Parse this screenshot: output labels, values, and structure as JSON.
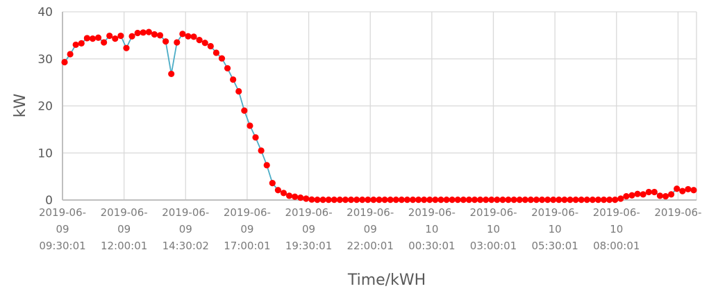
{
  "chart_data": {
    "type": "line",
    "title": "",
    "xlabel": "Time/kWH",
    "ylabel": "kW",
    "ylim": [
      0,
      40
    ],
    "yticks": [
      "0",
      "10",
      "20",
      "30",
      "40"
    ],
    "grid": true,
    "legend": "none",
    "x_tick_labels": [
      [
        "2019-06-",
        "09",
        "09:30:01"
      ],
      [
        "2019-06-",
        "09",
        "12:00:01"
      ],
      [
        "2019-06-",
        "09",
        "14:30:02"
      ],
      [
        "2019-06-",
        "09",
        "17:00:01"
      ],
      [
        "2019-06-",
        "09",
        "19:30:01"
      ],
      [
        "2019-06-",
        "09",
        "22:00:01"
      ],
      [
        "2019-06-",
        "10",
        "00:30:01"
      ],
      [
        "2019-06-",
        "10",
        "03:00:01"
      ],
      [
        "2019-06-",
        "10",
        "05:30:01"
      ],
      [
        "2019-06-",
        "10",
        "08:00:01"
      ],
      [
        "2019-06-",
        "",
        ""
      ]
    ],
    "colors": {
      "line": "#4bacc6",
      "marker": "#ff0000",
      "grid": "#d9d9d9",
      "axis": "#bfbfbf"
    },
    "series": [
      {
        "values": [
          29.3,
          31.0,
          33.0,
          33.3,
          34.4,
          34.3,
          34.5,
          33.5,
          34.9,
          34.3,
          34.9,
          32.3,
          34.8,
          35.5,
          35.6,
          35.7,
          35.2,
          35.0,
          33.7,
          26.8,
          33.5,
          35.3,
          34.8,
          34.7,
          34.0,
          33.4,
          32.7,
          31.3,
          30.1,
          28.0,
          25.6,
          23.1,
          19.0,
          15.8,
          13.3,
          10.5,
          7.4,
          3.6,
          2.1,
          1.5,
          0.9,
          0.7,
          0.5,
          0.3,
          0.1,
          0.05,
          0.05,
          0.05,
          0.05,
          0.05,
          0.05,
          0.05,
          0.05,
          0.05,
          0.05,
          0.05,
          0.05,
          0.05,
          0.05,
          0.05,
          0.05,
          0.05,
          0.05,
          0.05,
          0.05,
          0.05,
          0.05,
          0.05,
          0.05,
          0.05,
          0.05,
          0.05,
          0.05,
          0.05,
          0.05,
          0.05,
          0.05,
          0.05,
          0.05,
          0.05,
          0.05,
          0.05,
          0.05,
          0.05,
          0.05,
          0.05,
          0.05,
          0.05,
          0.05,
          0.05,
          0.05,
          0.05,
          0.05,
          0.05,
          0.05,
          0.05,
          0.05,
          0.05,
          0.05,
          0.3,
          0.8,
          1.0,
          1.3,
          1.2,
          1.7,
          1.7,
          0.9,
          0.8,
          1.2,
          2.4,
          1.9,
          2.3,
          2.1
        ]
      }
    ]
  }
}
